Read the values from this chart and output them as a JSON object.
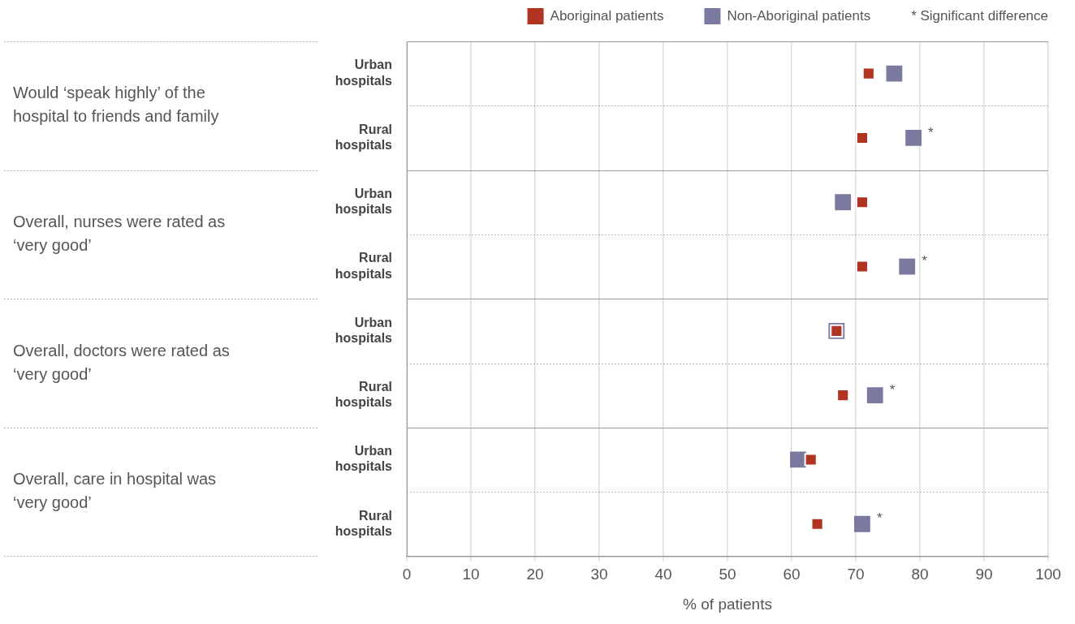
{
  "chart_data": {
    "type": "scatter",
    "orientation": "horizontal",
    "categories": [
      "Urban hospitals",
      "Rural hospitals",
      "Urban hospitals",
      "Rural hospitals",
      "Urban hospitals",
      "Rural hospitals",
      "Urban hospitals",
      "Rural hospitals"
    ],
    "series": [
      {
        "name": "Aboriginal patients",
        "color": "#b13322",
        "values": [
          72,
          71,
          71,
          71,
          67,
          68,
          63,
          64
        ]
      },
      {
        "name": "Non-Aboriginal patients",
        "color": "#7a7aa0",
        "values": [
          76,
          79,
          68,
          78,
          67,
          73,
          61,
          71
        ],
        "value_labels": [
          null,
          "*",
          null,
          "*",
          null,
          "*",
          null,
          "*"
        ]
      }
    ],
    "xlim": [
      0,
      100
    ],
    "xticks": [
      0,
      10,
      20,
      30,
      40,
      50,
      60,
      70,
      80,
      90,
      100
    ],
    "xlabel": "% of patients",
    "marker": "square",
    "grid": "x",
    "legend": "top right",
    "annotations": [
      "Would ‘speak highly’ of the hospital to friends and family",
      "Overall, nurses were rated as ‘very good’",
      "Overall, doctors were rated as ‘very good’",
      "Overall, care in hospital was ‘very good’",
      "* Significant difference"
    ]
  }
}
